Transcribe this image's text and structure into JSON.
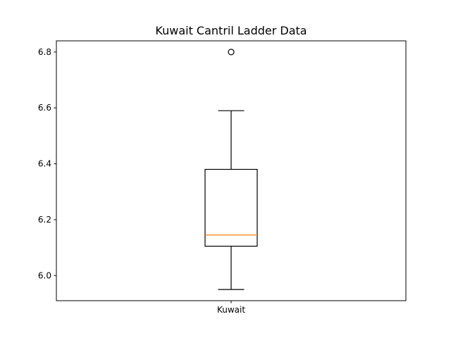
{
  "chart_data": {
    "type": "box",
    "title": "Kuwait Cantril Ladder Data",
    "xlabel": "",
    "ylabel": "",
    "categories": [
      "Kuwait"
    ],
    "boxes": [
      {
        "category": "Kuwait",
        "whisker_low": 5.95,
        "q1": 6.105,
        "median": 6.145,
        "q3": 6.38,
        "whisker_high": 6.59,
        "outliers": [
          6.8
        ]
      }
    ],
    "ylim": [
      5.91,
      6.84
    ],
    "yticks": [
      6.0,
      6.2,
      6.4,
      6.6,
      6.8
    ],
    "ytick_labels": [
      "6.0",
      "6.2",
      "6.4",
      "6.6",
      "6.8"
    ],
    "grid": false,
    "colors": {
      "box": "#000000",
      "median": "#ff7f0e",
      "outlier": "#000000"
    }
  }
}
